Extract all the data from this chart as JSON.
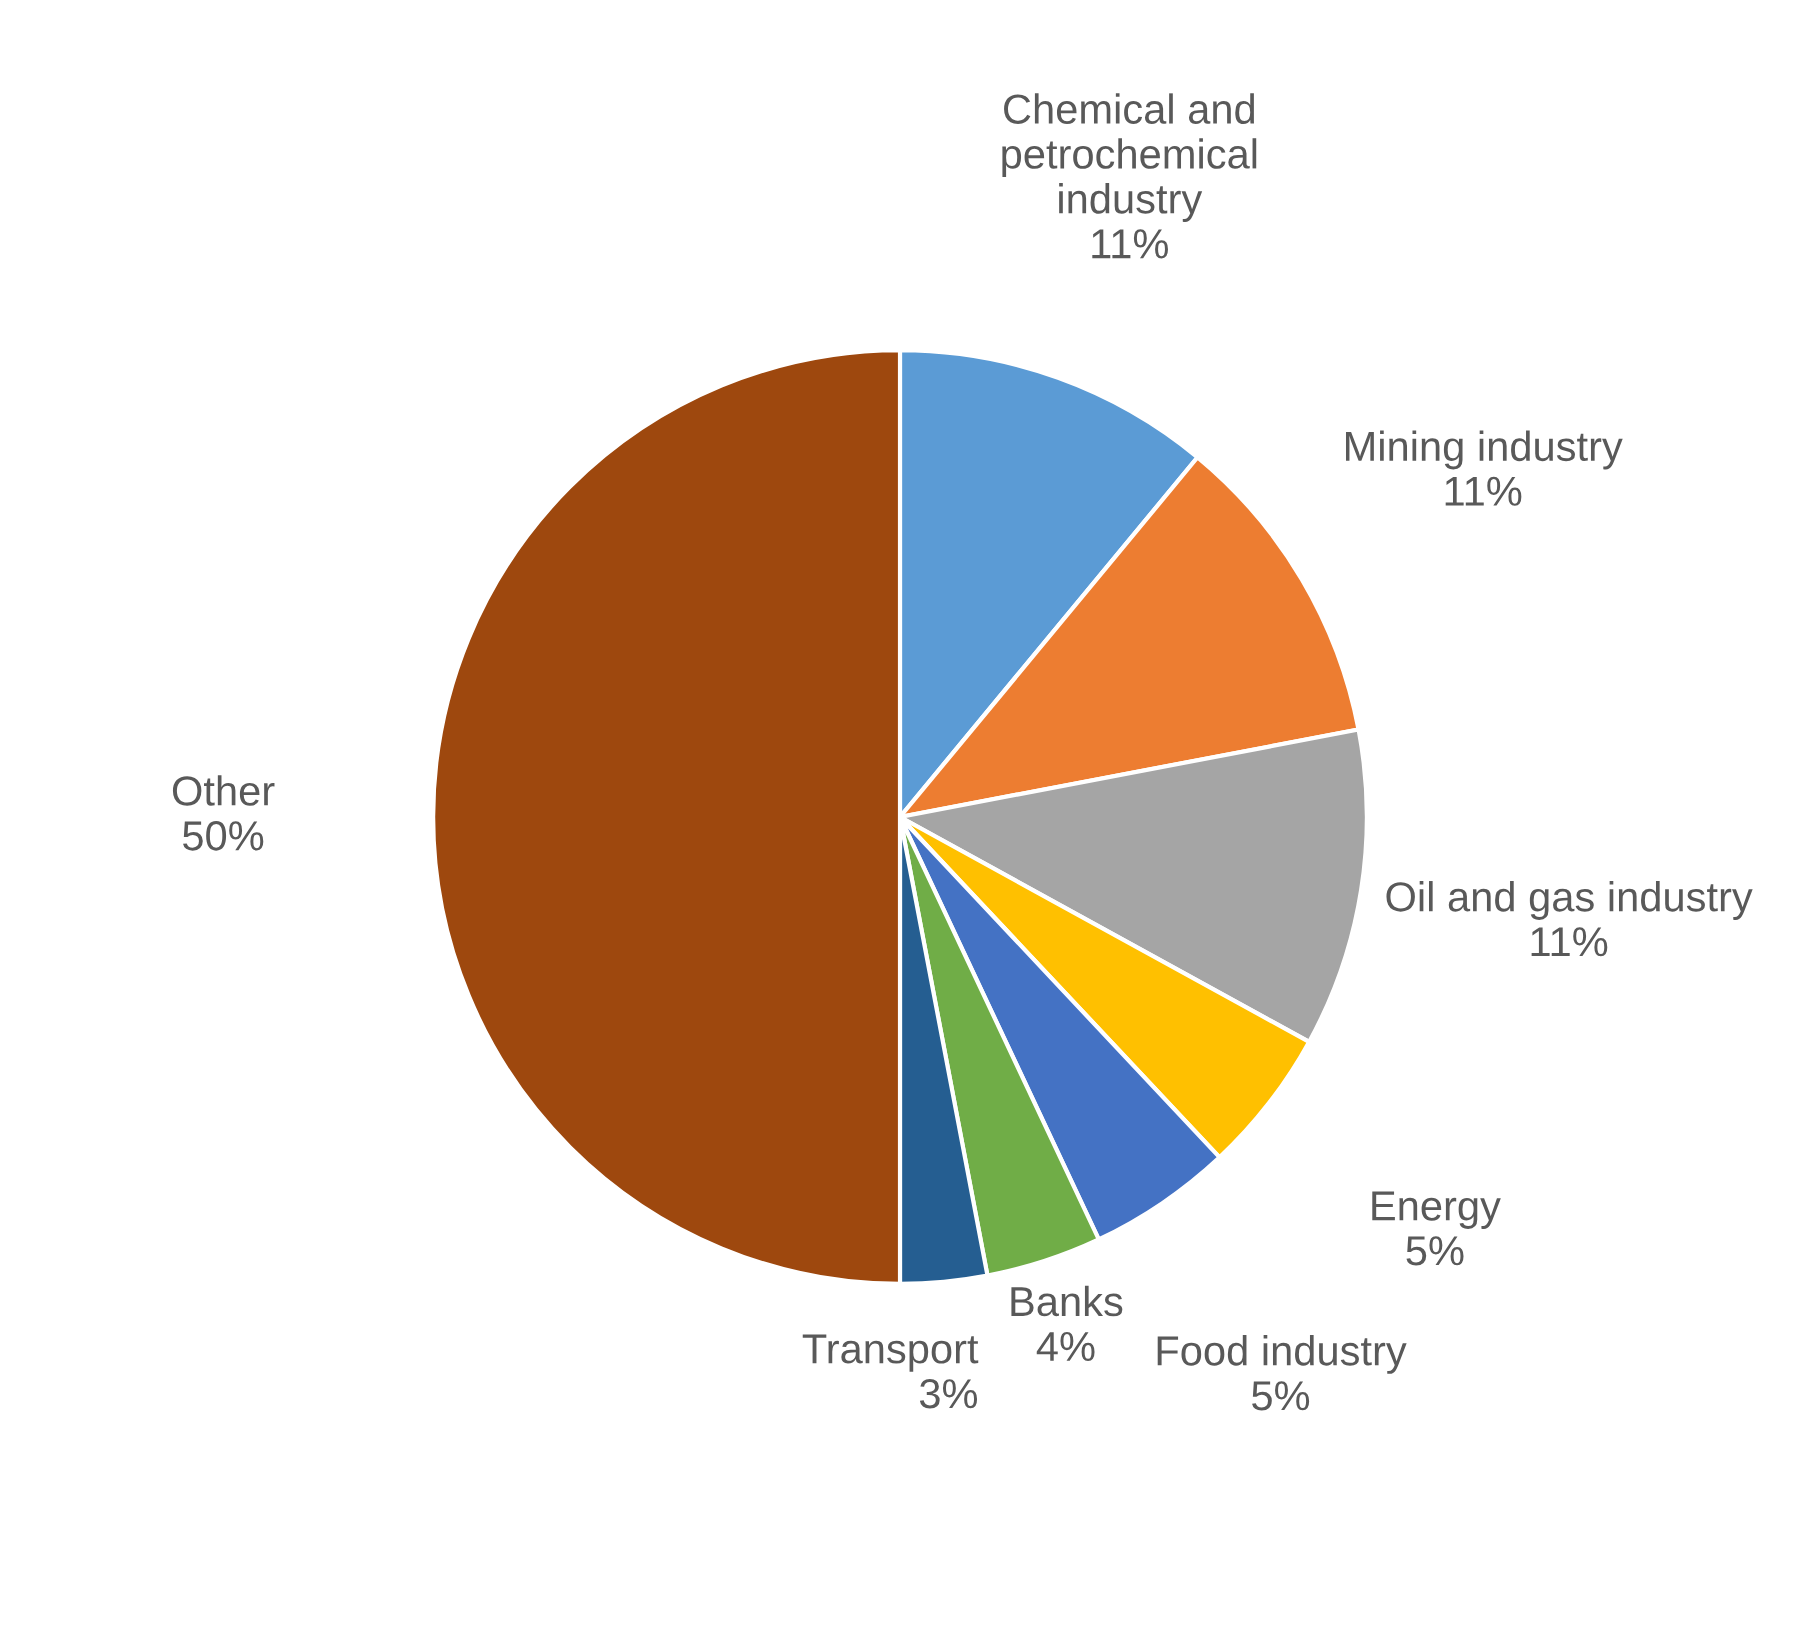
{
  "chart_data": {
    "type": "pie",
    "categories": [
      "Chemical and petrochemical industry",
      "Mining industry",
      "Oil and gas industry",
      "Energy",
      "Food industry",
      "Banks",
      "Transport",
      "Other"
    ],
    "values": [
      11,
      11,
      11,
      5,
      5,
      4,
      3,
      50
    ],
    "value_labels": [
      "11%",
      "11%",
      "11%",
      "5%",
      "5%",
      "4%",
      "3%",
      "50%"
    ],
    "colors": [
      "#5b9bd5",
      "#ed7d31",
      "#a5a5a5",
      "#ffc000",
      "#4472c4",
      "#70ad47",
      "#255e91",
      "#9e480e"
    ],
    "legend": false
  }
}
